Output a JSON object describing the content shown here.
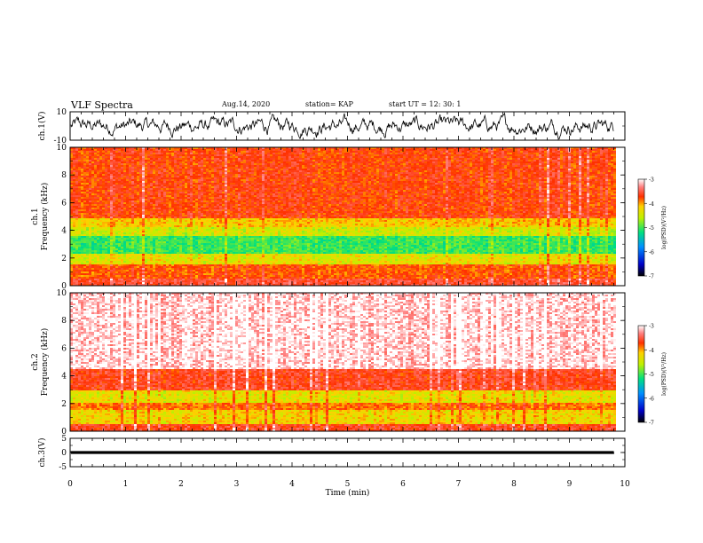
{
  "header": {
    "title": "VLF Spectra",
    "date": "Aug.14, 2020",
    "station": "station= KAP",
    "start": "start UT = 12: 30: 1"
  },
  "chart_data": [
    {
      "type": "line",
      "panel": "ch1-waveform",
      "ylabel": "ch.1(V)",
      "ylim": [
        -10,
        10
      ],
      "yticks": [
        "10",
        "-10"
      ],
      "xlim": [
        0,
        10
      ],
      "values_description_free": true,
      "amplitude_range": [
        -9,
        9
      ],
      "duration_min": 9.8,
      "color": "#000000"
    },
    {
      "type": "heatmap",
      "panel": "ch1-spectrogram",
      "ylabel": "ch.1 Frequency (kHz)",
      "ylim": [
        0,
        10
      ],
      "yticks": [
        "0",
        "2",
        "4",
        "6",
        "8",
        "10"
      ],
      "xlim": [
        0,
        10
      ],
      "duration_min": 9.8,
      "bands_khz": [
        {
          "range": [
            0,
            0.6
          ],
          "level": -3.6
        },
        {
          "range": [
            0.6,
            1.6
          ],
          "level": -3.9
        },
        {
          "range": [
            1.6,
            2.4
          ],
          "level": -4.5
        },
        {
          "range": [
            2.4,
            3.6
          ],
          "level": -5.2
        },
        {
          "range": [
            3.6,
            4.3
          ],
          "level": -4.6
        },
        {
          "range": [
            4.3,
            5.0
          ],
          "level": -4.3
        },
        {
          "range": [
            5.0,
            10
          ],
          "level": -3.8
        }
      ],
      "colorbar": {
        "label": "log(PSD)(V²/Hz)",
        "range": [
          -7,
          -3
        ],
        "ticks": [
          "-3",
          "-4",
          "-5",
          "-6",
          "-7"
        ]
      }
    },
    {
      "type": "heatmap",
      "panel": "ch2-spectrogram",
      "ylabel": "ch.2 Frequency (kHz)",
      "ylim": [
        0,
        10
      ],
      "yticks": [
        "0",
        "2",
        "4",
        "6",
        "8",
        "10"
      ],
      "xlim": [
        0,
        10
      ],
      "duration_min": 9.8,
      "bands_khz": [
        {
          "range": [
            0,
            0.6
          ],
          "level": -3.7
        },
        {
          "range": [
            0.6,
            1.6
          ],
          "level": -4.4
        },
        {
          "range": [
            1.6,
            2.1
          ],
          "level": -4.0
        },
        {
          "range": [
            2.1,
            3.0
          ],
          "level": -4.5
        },
        {
          "range": [
            3.0,
            4.6
          ],
          "level": -3.7
        },
        {
          "range": [
            4.6,
            10
          ],
          "level": -3.1
        }
      ],
      "colorbar": {
        "label": "log(PSD)(V²/Hz)",
        "range": [
          -7,
          -3
        ],
        "ticks": [
          "-3",
          "-4",
          "-5",
          "-6",
          "-7"
        ]
      }
    },
    {
      "type": "line",
      "panel": "ch3-waveform",
      "ylabel": "ch.3(V)",
      "ylim": [
        -5,
        5
      ],
      "yticks": [
        "5",
        "0",
        "-5"
      ],
      "xlim": [
        0,
        10
      ],
      "amplitude_range": [
        -0.5,
        0.5
      ],
      "duration_min": 9.8,
      "xlabel": "Time (min)",
      "xticks": [
        "0",
        "1",
        "2",
        "3",
        "4",
        "5",
        "6",
        "7",
        "8",
        "9",
        "10"
      ]
    }
  ],
  "colors": {
    "line": "#000000",
    "frame": "#000000"
  }
}
